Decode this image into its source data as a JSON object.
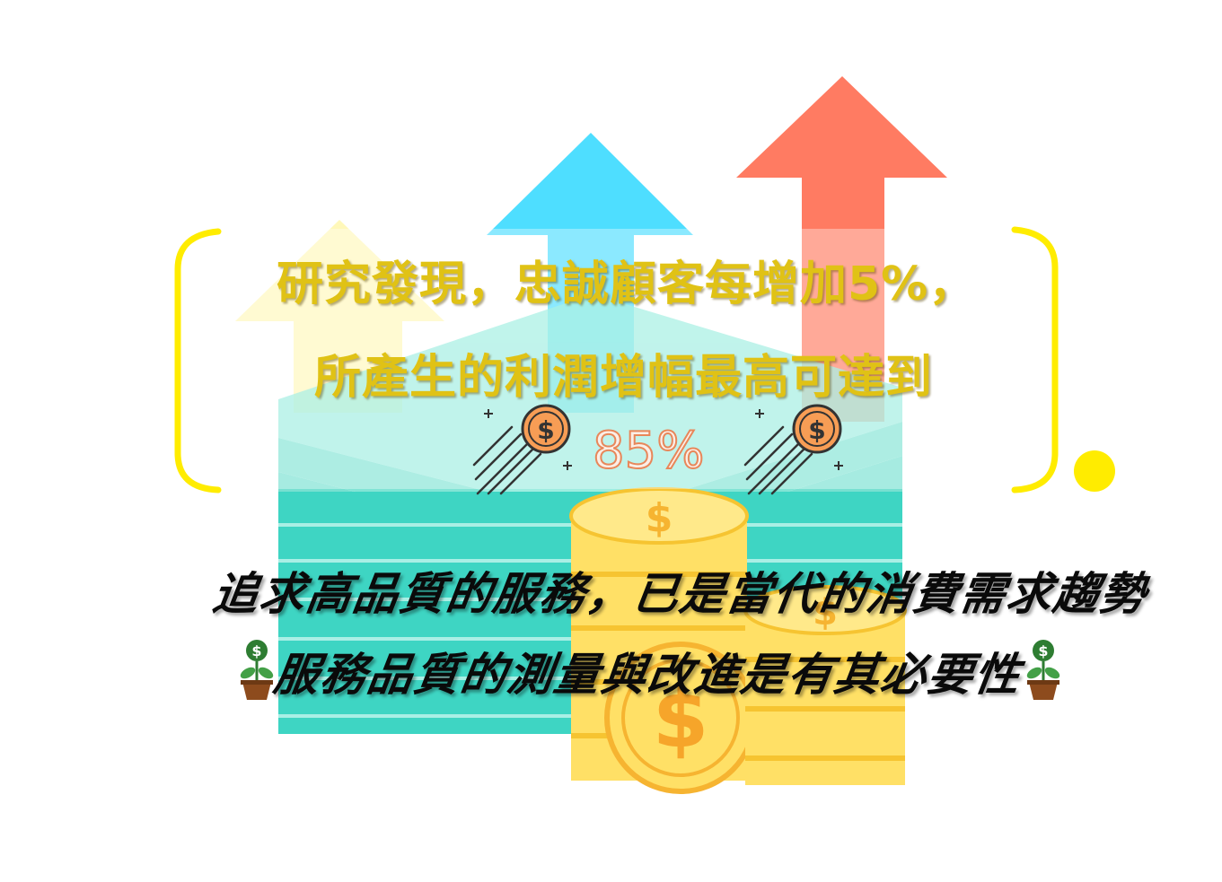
{
  "slide": {
    "headline_line1": "研究發現，忠誠顧客每增加5%，",
    "headline_line2": "所產生的利潤增幅最高可達到",
    "highlight_value": "85%",
    "statement_line1": "追求高品質的服務，已是當代的消費需求趨勢",
    "statement_line2": "服務品質的測量與改進是有其必要性"
  },
  "icons": {
    "coin": "flying-dollar-coin-icon",
    "plant": "money-plant-icon",
    "bracket": "bracket-frame"
  },
  "colors": {
    "headline": "#e0c215",
    "percent_fill": "#fbeee6",
    "percent_stroke": "#e8875a",
    "bracket": "#ffec00",
    "arrow_red": "#ff7b62",
    "arrow_blue": "#2fd8ff",
    "arrow_yellow": "#fff59d",
    "money_teal": "#3ed5c3",
    "coin_gold": "#ffe066"
  }
}
